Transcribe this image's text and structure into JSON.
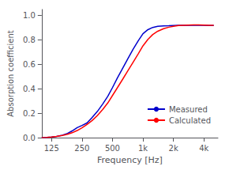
{
  "chart_data": {
    "type": "line",
    "xlabel": "Frequency [Hz]",
    "ylabel": "Absorption coefficient",
    "log": "x",
    "xlim": [
      100,
      5500
    ],
    "ylim": [
      0.0,
      1.05
    ],
    "xticks": [
      125,
      250,
      500,
      {
        "value": 1000,
        "label": "1k"
      },
      {
        "value": 2000,
        "label": "2k"
      },
      {
        "value": 4000,
        "label": "4k"
      }
    ],
    "yticks": [
      {
        "value": 0.0,
        "label": "0.0"
      },
      0.2,
      0.4,
      0.6,
      0.8,
      {
        "value": 1.0,
        "label": "1.0"
      }
    ],
    "grid": false,
    "legend": "lower right",
    "x": [
      100,
      112,
      125,
      140,
      160,
      180,
      200,
      224,
      250,
      280,
      315,
      355,
      400,
      450,
      500,
      560,
      630,
      710,
      800,
      900,
      1000,
      1120,
      1250,
      1400,
      1600,
      1800,
      2000,
      2240,
      2500,
      2800,
      3150,
      3550,
      4000,
      4500,
      5000
    ],
    "series": [
      {
        "name": "Measured",
        "color": "#0000cc",
        "values": [
          0.0,
          0.002,
          0.005,
          0.01,
          0.02,
          0.035,
          0.055,
          0.082,
          0.1,
          0.12,
          0.165,
          0.215,
          0.275,
          0.34,
          0.41,
          0.49,
          0.568,
          0.648,
          0.725,
          0.795,
          0.852,
          0.885,
          0.903,
          0.912,
          0.916,
          0.917,
          0.919,
          0.92,
          0.921,
          0.921,
          0.921,
          0.92,
          0.92,
          0.919,
          0.918
        ]
      },
      {
        "name": "Calculated",
        "color": "#ff0000",
        "values": [
          0.0,
          0.002,
          0.005,
          0.01,
          0.018,
          0.028,
          0.04,
          0.058,
          0.08,
          0.108,
          0.14,
          0.182,
          0.23,
          0.285,
          0.345,
          0.41,
          0.478,
          0.548,
          0.618,
          0.688,
          0.752,
          0.805,
          0.845,
          0.872,
          0.893,
          0.905,
          0.912,
          0.918,
          0.921,
          0.922,
          0.923,
          0.923,
          0.922,
          0.921,
          0.92
        ]
      }
    ]
  }
}
